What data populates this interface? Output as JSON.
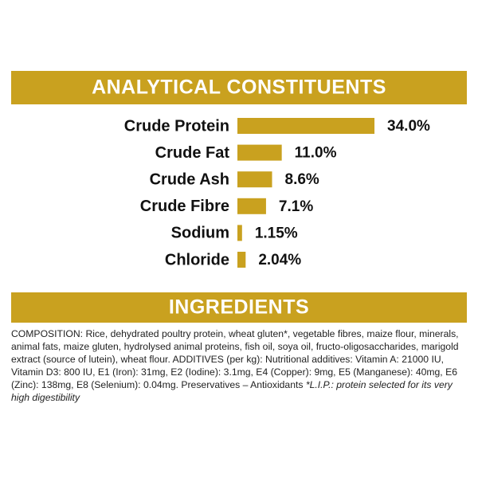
{
  "chart_data": {
    "type": "bar",
    "orientation": "horizontal",
    "title": "ANALYTICAL CONSTITUENTS",
    "categories": [
      "Crude Protein",
      "Crude Fat",
      "Crude Ash",
      "Crude Fibre",
      "Sodium",
      "Chloride"
    ],
    "values": [
      34.0,
      11.0,
      8.6,
      7.1,
      1.15,
      2.04
    ],
    "value_labels": [
      "34.0%",
      "11.0%",
      "8.6%",
      "7.1%",
      "1.15%",
      "2.04%"
    ],
    "color": "#c9a11f"
  },
  "ingredients": {
    "title": "INGREDIENTS",
    "text": "COMPOSITION: Rice, dehydrated poultry protein, wheat gluten*, vegetable fibres, maize flour, minerals, animal fats, maize gluten, hydrolysed animal proteins, fish oil, soya oil, fructo-oligosaccharides, marigold extract (source of lutein), wheat flour. ADDITIVES (per kg): Nutritional additives: Vitamin A: 21000 IU, Vitamin D3: 800 IU, E1 (Iron): 31mg, E2 (Iodine): 3.1mg, E4 (Copper): 9mg, E5 (Manganese): 40mg, E6 (Zinc): 138mg, E8 (Selenium): 0.04mg. Preservatives – Antioxidants",
    "note": "*L.I.P.: protein selected for its very high digestibility"
  }
}
